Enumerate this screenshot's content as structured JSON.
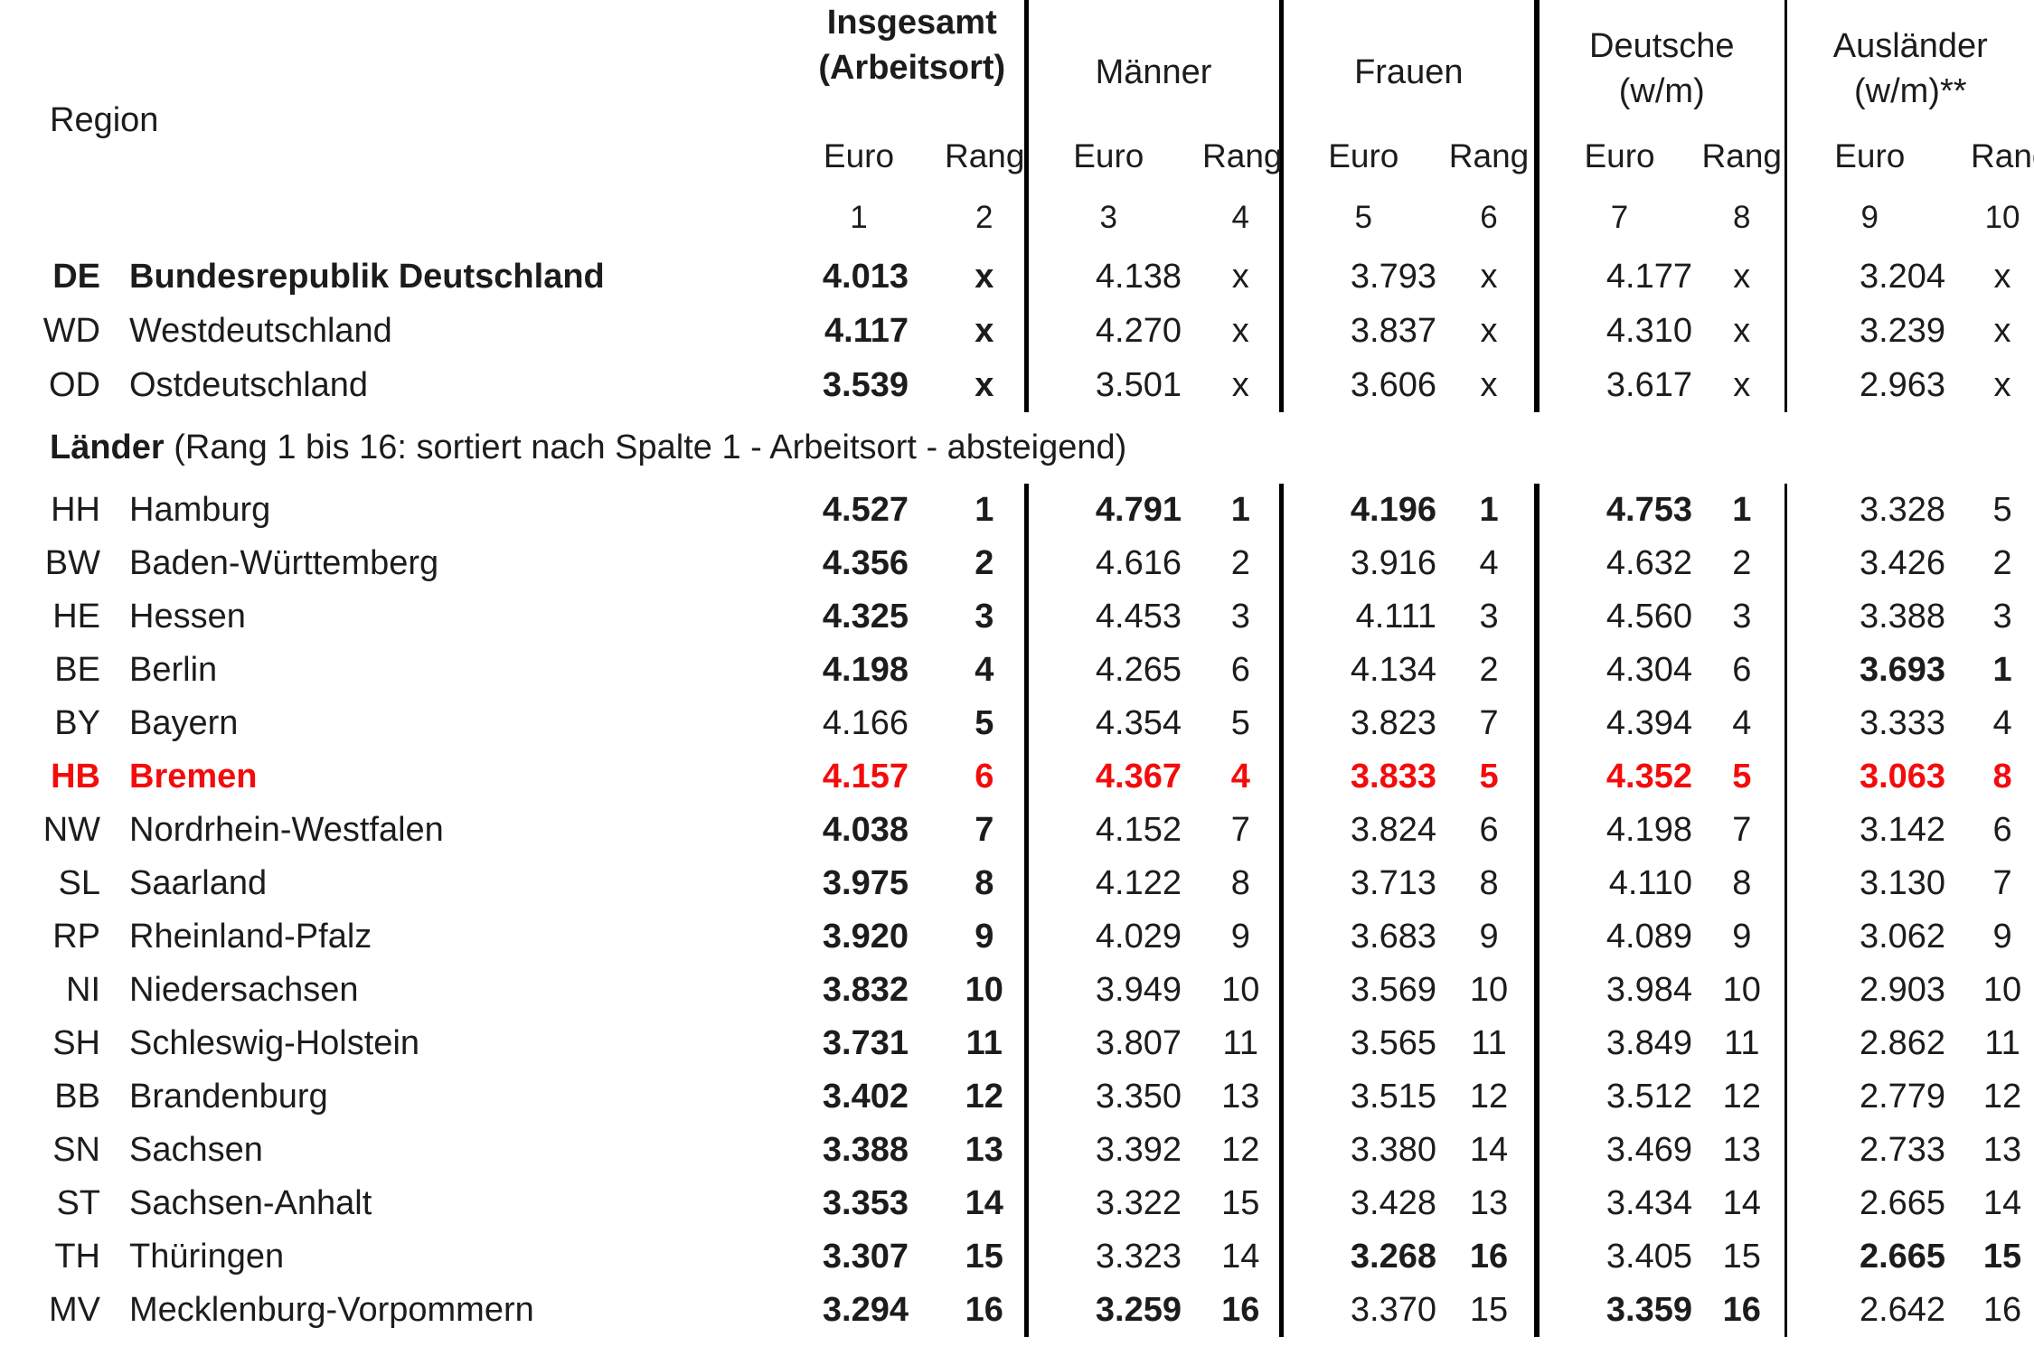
{
  "header": {
    "region_label": "Region",
    "groups": [
      {
        "line1": "Insgesamt",
        "line2": "(Arbeitsort)"
      },
      {
        "line1": "Männer",
        "line2": ""
      },
      {
        "line1": "Frauen",
        "line2": ""
      },
      {
        "line1": "Deutsche",
        "line2": "(w/m)"
      },
      {
        "line1": "Ausländer",
        "line2": "(w/m)**"
      }
    ],
    "euro_label": "Euro",
    "rang_label": "Rang",
    "column_numbers": [
      "1",
      "2",
      "3",
      "4",
      "5",
      "6",
      "7",
      "8",
      "9",
      "10"
    ]
  },
  "section_heading": {
    "bold_part": "Länder",
    "rest": " (Rang 1 bis 16: sortiert nach Spalte 1 - Arbeitsort - absteigend)"
  },
  "colors": {
    "accent_red": "#f40b0b",
    "text": "#1c1c1c",
    "divider": "#000000"
  },
  "summary_rows": [
    {
      "code": "DE",
      "name": "Bundesrepublik Deutschland",
      "label_bold": true,
      "highlight": false,
      "cells": [
        {
          "v": "4.013",
          "b": true
        },
        {
          "v": "x",
          "b": true
        },
        {
          "v": "4.138",
          "b": false
        },
        {
          "v": "x",
          "b": false
        },
        {
          "v": "3.793",
          "b": false
        },
        {
          "v": "x",
          "b": false
        },
        {
          "v": "4.177",
          "b": false
        },
        {
          "v": "x",
          "b": false
        },
        {
          "v": "3.204",
          "b": false
        },
        {
          "v": "x",
          "b": false
        }
      ]
    },
    {
      "code": "WD",
      "name": "Westdeutschland",
      "label_bold": false,
      "highlight": false,
      "cells": [
        {
          "v": "4.117",
          "b": true
        },
        {
          "v": "x",
          "b": true
        },
        {
          "v": "4.270",
          "b": false
        },
        {
          "v": "x",
          "b": false
        },
        {
          "v": "3.837",
          "b": false
        },
        {
          "v": "x",
          "b": false
        },
        {
          "v": "4.310",
          "b": false
        },
        {
          "v": "x",
          "b": false
        },
        {
          "v": "3.239",
          "b": false
        },
        {
          "v": "x",
          "b": false
        }
      ]
    },
    {
      "code": "OD",
      "name": "Ostdeutschland",
      "label_bold": false,
      "highlight": false,
      "cells": [
        {
          "v": "3.539",
          "b": true
        },
        {
          "v": "x",
          "b": true
        },
        {
          "v": "3.501",
          "b": false
        },
        {
          "v": "x",
          "b": false
        },
        {
          "v": "3.606",
          "b": false
        },
        {
          "v": "x",
          "b": false
        },
        {
          "v": "3.617",
          "b": false
        },
        {
          "v": "x",
          "b": false
        },
        {
          "v": "2.963",
          "b": false
        },
        {
          "v": "x",
          "b": false
        }
      ]
    }
  ],
  "land_rows": [
    {
      "code": "HH",
      "name": "Hamburg",
      "label_bold": false,
      "highlight": false,
      "cells": [
        {
          "v": "4.527",
          "b": true
        },
        {
          "v": "1",
          "b": true
        },
        {
          "v": "4.791",
          "b": true
        },
        {
          "v": "1",
          "b": true
        },
        {
          "v": "4.196",
          "b": true
        },
        {
          "v": "1",
          "b": true
        },
        {
          "v": "4.753",
          "b": true
        },
        {
          "v": "1",
          "b": true
        },
        {
          "v": "3.328",
          "b": false
        },
        {
          "v": "5",
          "b": false
        }
      ]
    },
    {
      "code": "BW",
      "name": "Baden-Württemberg",
      "label_bold": false,
      "highlight": false,
      "cells": [
        {
          "v": "4.356",
          "b": true
        },
        {
          "v": "2",
          "b": true
        },
        {
          "v": "4.616",
          "b": false
        },
        {
          "v": "2",
          "b": false
        },
        {
          "v": "3.916",
          "b": false
        },
        {
          "v": "4",
          "b": false
        },
        {
          "v": "4.632",
          "b": false
        },
        {
          "v": "2",
          "b": false
        },
        {
          "v": "3.426",
          "b": false
        },
        {
          "v": "2",
          "b": false
        }
      ]
    },
    {
      "code": "HE",
      "name": "Hessen",
      "label_bold": false,
      "highlight": false,
      "cells": [
        {
          "v": "4.325",
          "b": true
        },
        {
          "v": "3",
          "b": true
        },
        {
          "v": "4.453",
          "b": false
        },
        {
          "v": "3",
          "b": false
        },
        {
          "v": "4.111",
          "b": false
        },
        {
          "v": "3",
          "b": false
        },
        {
          "v": "4.560",
          "b": false
        },
        {
          "v": "3",
          "b": false
        },
        {
          "v": "3.388",
          "b": false
        },
        {
          "v": "3",
          "b": false
        }
      ]
    },
    {
      "code": "BE",
      "name": "Berlin",
      "label_bold": false,
      "highlight": false,
      "cells": [
        {
          "v": "4.198",
          "b": true
        },
        {
          "v": "4",
          "b": true
        },
        {
          "v": "4.265",
          "b": false
        },
        {
          "v": "6",
          "b": false
        },
        {
          "v": "4.134",
          "b": false
        },
        {
          "v": "2",
          "b": false
        },
        {
          "v": "4.304",
          "b": false
        },
        {
          "v": "6",
          "b": false
        },
        {
          "v": "3.693",
          "b": true
        },
        {
          "v": "1",
          "b": true
        }
      ]
    },
    {
      "code": "BY",
      "name": "Bayern",
      "label_bold": false,
      "highlight": false,
      "cells": [
        {
          "v": "4.166",
          "b": false
        },
        {
          "v": "5",
          "b": true
        },
        {
          "v": "4.354",
          "b": false
        },
        {
          "v": "5",
          "b": false
        },
        {
          "v": "3.823",
          "b": false
        },
        {
          "v": "7",
          "b": false
        },
        {
          "v": "4.394",
          "b": false
        },
        {
          "v": "4",
          "b": false
        },
        {
          "v": "3.333",
          "b": false
        },
        {
          "v": "4",
          "b": false
        }
      ]
    },
    {
      "code": "HB",
      "name": "Bremen",
      "label_bold": true,
      "highlight": true,
      "cells": [
        {
          "v": "4.157",
          "b": true
        },
        {
          "v": "6",
          "b": true
        },
        {
          "v": "4.367",
          "b": true
        },
        {
          "v": "4",
          "b": true
        },
        {
          "v": "3.833",
          "b": true
        },
        {
          "v": "5",
          "b": true
        },
        {
          "v": "4.352",
          "b": true
        },
        {
          "v": "5",
          "b": true
        },
        {
          "v": "3.063",
          "b": true
        },
        {
          "v": "8",
          "b": true
        }
      ]
    },
    {
      "code": "NW",
      "name": "Nordrhein-Westfalen",
      "label_bold": false,
      "highlight": false,
      "cells": [
        {
          "v": "4.038",
          "b": true
        },
        {
          "v": "7",
          "b": true
        },
        {
          "v": "4.152",
          "b": false
        },
        {
          "v": "7",
          "b": false
        },
        {
          "v": "3.824",
          "b": false
        },
        {
          "v": "6",
          "b": false
        },
        {
          "v": "4.198",
          "b": false
        },
        {
          "v": "7",
          "b": false
        },
        {
          "v": "3.142",
          "b": false
        },
        {
          "v": "6",
          "b": false
        }
      ]
    },
    {
      "code": "SL",
      "name": "Saarland",
      "label_bold": false,
      "highlight": false,
      "cells": [
        {
          "v": "3.975",
          "b": true
        },
        {
          "v": "8",
          "b": true
        },
        {
          "v": "4.122",
          "b": false
        },
        {
          "v": "8",
          "b": false
        },
        {
          "v": "3.713",
          "b": false
        },
        {
          "v": "8",
          "b": false
        },
        {
          "v": "4.110",
          "b": false
        },
        {
          "v": "8",
          "b": false
        },
        {
          "v": "3.130",
          "b": false
        },
        {
          "v": "7",
          "b": false
        }
      ]
    },
    {
      "code": "RP",
      "name": "Rheinland-Pfalz",
      "label_bold": false,
      "highlight": false,
      "cells": [
        {
          "v": "3.920",
          "b": true
        },
        {
          "v": "9",
          "b": true
        },
        {
          "v": "4.029",
          "b": false
        },
        {
          "v": "9",
          "b": false
        },
        {
          "v": "3.683",
          "b": false
        },
        {
          "v": "9",
          "b": false
        },
        {
          "v": "4.089",
          "b": false
        },
        {
          "v": "9",
          "b": false
        },
        {
          "v": "3.062",
          "b": false
        },
        {
          "v": "9",
          "b": false
        }
      ]
    },
    {
      "code": "NI",
      "name": "Niedersachsen",
      "label_bold": false,
      "highlight": false,
      "cells": [
        {
          "v": "3.832",
          "b": true
        },
        {
          "v": "10",
          "b": true
        },
        {
          "v": "3.949",
          "b": false
        },
        {
          "v": "10",
          "b": false
        },
        {
          "v": "3.569",
          "b": false
        },
        {
          "v": "10",
          "b": false
        },
        {
          "v": "3.984",
          "b": false
        },
        {
          "v": "10",
          "b": false
        },
        {
          "v": "2.903",
          "b": false
        },
        {
          "v": "10",
          "b": false
        }
      ]
    },
    {
      "code": "SH",
      "name": "Schleswig-Holstein",
      "label_bold": false,
      "highlight": false,
      "cells": [
        {
          "v": "3.731",
          "b": true
        },
        {
          "v": "11",
          "b": true
        },
        {
          "v": "3.807",
          "b": false
        },
        {
          "v": "11",
          "b": false
        },
        {
          "v": "3.565",
          "b": false
        },
        {
          "v": "11",
          "b": false
        },
        {
          "v": "3.849",
          "b": false
        },
        {
          "v": "11",
          "b": false
        },
        {
          "v": "2.862",
          "b": false
        },
        {
          "v": "11",
          "b": false
        }
      ]
    },
    {
      "code": "BB",
      "name": "Brandenburg",
      "label_bold": false,
      "highlight": false,
      "cells": [
        {
          "v": "3.402",
          "b": true
        },
        {
          "v": "12",
          "b": true
        },
        {
          "v": "3.350",
          "b": false
        },
        {
          "v": "13",
          "b": false
        },
        {
          "v": "3.515",
          "b": false
        },
        {
          "v": "12",
          "b": false
        },
        {
          "v": "3.512",
          "b": false
        },
        {
          "v": "12",
          "b": false
        },
        {
          "v": "2.779",
          "b": false
        },
        {
          "v": "12",
          "b": false
        }
      ]
    },
    {
      "code": "SN",
      "name": "Sachsen",
      "label_bold": false,
      "highlight": false,
      "cells": [
        {
          "v": "3.388",
          "b": true
        },
        {
          "v": "13",
          "b": true
        },
        {
          "v": "3.392",
          "b": false
        },
        {
          "v": "12",
          "b": false
        },
        {
          "v": "3.380",
          "b": false
        },
        {
          "v": "14",
          "b": false
        },
        {
          "v": "3.469",
          "b": false
        },
        {
          "v": "13",
          "b": false
        },
        {
          "v": "2.733",
          "b": false
        },
        {
          "v": "13",
          "b": false
        }
      ]
    },
    {
      "code": "ST",
      "name": "Sachsen-Anhalt",
      "label_bold": false,
      "highlight": false,
      "cells": [
        {
          "v": "3.353",
          "b": true
        },
        {
          "v": "14",
          "b": true
        },
        {
          "v": "3.322",
          "b": false
        },
        {
          "v": "15",
          "b": false
        },
        {
          "v": "3.428",
          "b": false
        },
        {
          "v": "13",
          "b": false
        },
        {
          "v": "3.434",
          "b": false
        },
        {
          "v": "14",
          "b": false
        },
        {
          "v": "2.665",
          "b": false
        },
        {
          "v": "14",
          "b": false
        }
      ]
    },
    {
      "code": "TH",
      "name": "Thüringen",
      "label_bold": false,
      "highlight": false,
      "cells": [
        {
          "v": "3.307",
          "b": true
        },
        {
          "v": "15",
          "b": true
        },
        {
          "v": "3.323",
          "b": false
        },
        {
          "v": "14",
          "b": false
        },
        {
          "v": "3.268",
          "b": true
        },
        {
          "v": "16",
          "b": true
        },
        {
          "v": "3.405",
          "b": false
        },
        {
          "v": "15",
          "b": false
        },
        {
          "v": "2.665",
          "b": true
        },
        {
          "v": "15",
          "b": true
        }
      ]
    },
    {
      "code": "MV",
      "name": "Mecklenburg-Vorpommern",
      "label_bold": false,
      "highlight": false,
      "cells": [
        {
          "v": "3.294",
          "b": true
        },
        {
          "v": "16",
          "b": true
        },
        {
          "v": "3.259",
          "b": true
        },
        {
          "v": "16",
          "b": true
        },
        {
          "v": "3.370",
          "b": false
        },
        {
          "v": "15",
          "b": false
        },
        {
          "v": "3.359",
          "b": true
        },
        {
          "v": "16",
          "b": true
        },
        {
          "v": "2.642",
          "b": false
        },
        {
          "v": "16",
          "b": false
        }
      ]
    }
  ]
}
